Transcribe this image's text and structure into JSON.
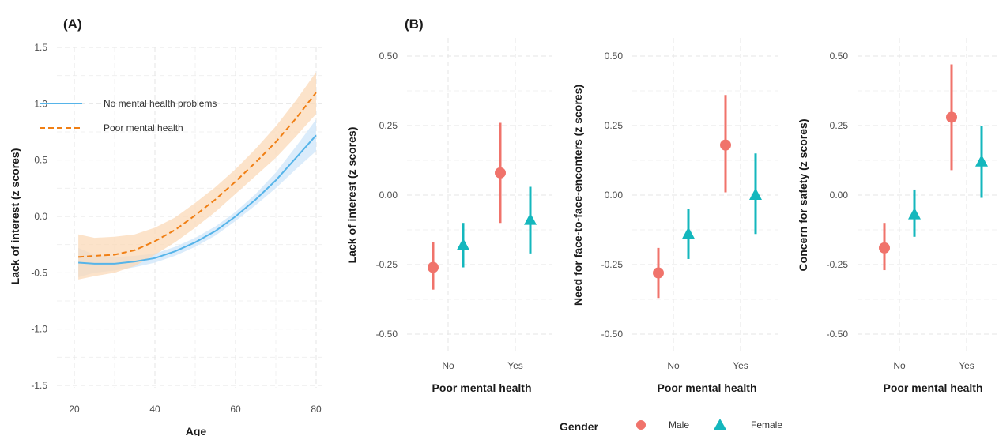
{
  "panel_a_tag": "(A)",
  "panel_b_tag": "(B)",
  "colors": {
    "no_mental": "#56b4e9",
    "no_mental_band": "#cfe6fa",
    "poor_mental": "#f07f14",
    "poor_mental_band": "#fbd9b8",
    "male": "#f0736b",
    "female": "#14b7bd"
  },
  "chart_data": [
    {
      "type": "line",
      "panel": "(A)",
      "xlabel": "Age",
      "ylabel": "Lack of interest (z scores)",
      "xlim": [
        20,
        80
      ],
      "ylim": [
        -1.5,
        1.5
      ],
      "x_ticks": [
        "20",
        "40",
        "60",
        "80"
      ],
      "y_ticks": [
        "-1.5",
        "-1.0",
        "-0.5",
        "0.0",
        "0.5",
        "1.0",
        "1.5"
      ],
      "grid": true,
      "legend_position": "top-left",
      "series": [
        {
          "name": "No mental health problems",
          "style": "solid",
          "color_key": "no_mental",
          "x": [
            21,
            25,
            30,
            35,
            40,
            45,
            50,
            55,
            60,
            65,
            70,
            75,
            80
          ],
          "y": [
            -0.41,
            -0.42,
            -0.42,
            -0.4,
            -0.37,
            -0.31,
            -0.23,
            -0.13,
            0.0,
            0.15,
            0.32,
            0.52,
            0.72
          ],
          "lower": [
            -0.54,
            -0.5,
            -0.48,
            -0.45,
            -0.41,
            -0.35,
            -0.27,
            -0.17,
            -0.04,
            0.1,
            0.25,
            0.42,
            0.58
          ],
          "upper": [
            -0.28,
            -0.34,
            -0.36,
            -0.35,
            -0.33,
            -0.27,
            -0.19,
            -0.09,
            0.04,
            0.2,
            0.39,
            0.62,
            0.86
          ]
        },
        {
          "name": "Poor mental health",
          "style": "dashed",
          "color_key": "poor_mental",
          "x": [
            21,
            25,
            30,
            35,
            40,
            45,
            50,
            55,
            60,
            65,
            70,
            75,
            80
          ],
          "y": [
            -0.36,
            -0.35,
            -0.34,
            -0.3,
            -0.22,
            -0.12,
            0.01,
            0.15,
            0.31,
            0.48,
            0.66,
            0.87,
            1.1
          ],
          "lower": [
            -0.56,
            -0.53,
            -0.5,
            -0.44,
            -0.34,
            -0.23,
            -0.1,
            0.04,
            0.2,
            0.36,
            0.52,
            0.71,
            0.91
          ],
          "upper": [
            -0.16,
            -0.19,
            -0.18,
            -0.16,
            -0.1,
            -0.01,
            0.12,
            0.26,
            0.42,
            0.6,
            0.8,
            1.03,
            1.28
          ]
        }
      ]
    },
    {
      "type": "scatter",
      "panel": "(B)",
      "xlabel": "Poor mental health",
      "ylabel": "Lack of interest (z scores)",
      "categories": [
        "No",
        "Yes"
      ],
      "ylim": [
        -0.55,
        0.55
      ],
      "y_ticks": [
        "-0.50",
        "-0.25",
        "0.00",
        "0.25",
        "0.50"
      ],
      "series": [
        {
          "name": "Male",
          "values": [
            -0.26,
            0.08
          ],
          "lower": [
            -0.34,
            -0.1
          ],
          "upper": [
            -0.17,
            0.26
          ]
        },
        {
          "name": "Female",
          "values": [
            -0.18,
            -0.09
          ],
          "lower": [
            -0.26,
            -0.21
          ],
          "upper": [
            -0.1,
            0.03
          ]
        }
      ]
    },
    {
      "type": "scatter",
      "panel": "(B)",
      "xlabel": "Poor mental health",
      "ylabel": "Need for face-to-face-enconters (z scores)",
      "categories": [
        "No",
        "Yes"
      ],
      "ylim": [
        -0.55,
        0.55
      ],
      "y_ticks": [
        "-0.50",
        "-0.25",
        "0.00",
        "0.25",
        "0.50"
      ],
      "series": [
        {
          "name": "Male",
          "values": [
            -0.28,
            0.18
          ],
          "lower": [
            -0.37,
            0.01
          ],
          "upper": [
            -0.19,
            0.36
          ]
        },
        {
          "name": "Female",
          "values": [
            -0.14,
            0.0
          ],
          "lower": [
            -0.23,
            -0.14
          ],
          "upper": [
            -0.05,
            0.15
          ]
        }
      ]
    },
    {
      "type": "scatter",
      "panel": "(B)",
      "xlabel": "Poor mental health",
      "ylabel": "Concern for safety (z scores)",
      "categories": [
        "No",
        "Yes"
      ],
      "ylim": [
        -0.55,
        0.55
      ],
      "y_ticks": [
        "-0.50",
        "-0.25",
        "0.00",
        "0.25",
        "0.50"
      ],
      "series": [
        {
          "name": "Male",
          "values": [
            -0.19,
            0.28
          ],
          "lower": [
            -0.27,
            0.09
          ],
          "upper": [
            -0.1,
            0.47
          ]
        },
        {
          "name": "Female",
          "values": [
            -0.07,
            0.12
          ],
          "lower": [
            -0.15,
            -0.01
          ],
          "upper": [
            0.02,
            0.25
          ]
        }
      ]
    }
  ],
  "legend_b": {
    "title": "Gender",
    "items": [
      {
        "label": "Male",
        "shape": "circle",
        "color_key": "male"
      },
      {
        "label": "Female",
        "shape": "triangle",
        "color_key": "female"
      }
    ]
  }
}
